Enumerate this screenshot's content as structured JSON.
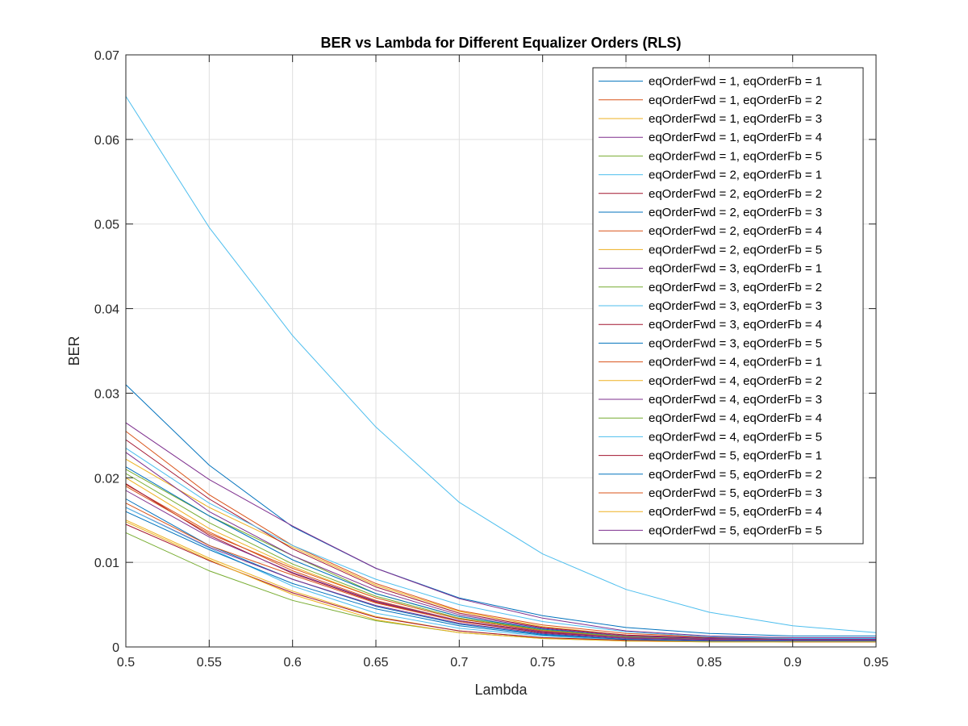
{
  "chart_data": {
    "type": "line",
    "title": "BER vs Lambda for Different Equalizer Orders (RLS)",
    "xlabel": "Lambda",
    "ylabel": "BER",
    "xlim": [
      0.5,
      0.95
    ],
    "ylim": [
      0,
      0.07
    ],
    "xticks": [
      "0.5",
      "0.55",
      "0.6",
      "0.65",
      "0.7",
      "0.75",
      "0.8",
      "0.85",
      "0.9",
      "0.95"
    ],
    "yticks": [
      "0",
      "0.01",
      "0.02",
      "0.03",
      "0.04",
      "0.05",
      "0.06",
      "0.07"
    ],
    "grid": true,
    "legend_position": "top-right",
    "x": [
      0.5,
      0.55,
      0.6,
      0.65,
      0.7,
      0.75,
      0.8,
      0.85,
      0.9,
      0.95
    ],
    "series": [
      {
        "name": "eqOrderFwd = 1, eqOrderFb = 1",
        "color": "#0072BD",
        "values": [
          0.031,
          0.0215,
          0.0142,
          0.0093,
          0.0058,
          0.0037,
          0.0023,
          0.0016,
          0.0013,
          0.0013
        ]
      },
      {
        "name": "eqOrderFwd = 1, eqOrderFb = 2",
        "color": "#D95319",
        "values": [
          0.0255,
          0.018,
          0.012,
          0.0075,
          0.0043,
          0.0026,
          0.0016,
          0.0012,
          0.0011,
          0.001
        ]
      },
      {
        "name": "eqOrderFwd = 1, eqOrderFb = 3",
        "color": "#EDB120",
        "values": [
          0.0222,
          0.0165,
          0.0118,
          0.0073,
          0.0042,
          0.0024,
          0.0014,
          0.0011,
          0.001,
          0.0009
        ]
      },
      {
        "name": "eqOrderFwd = 1, eqOrderFb = 4",
        "color": "#7E2F8E",
        "values": [
          0.0265,
          0.0198,
          0.0143,
          0.0093,
          0.0057,
          0.0034,
          0.0019,
          0.0013,
          0.0011,
          0.0011
        ]
      },
      {
        "name": "eqOrderFwd = 1, eqOrderFb = 5",
        "color": "#77AC30",
        "values": [
          0.021,
          0.0155,
          0.0108,
          0.0063,
          0.0036,
          0.002,
          0.0012,
          0.001,
          0.0009,
          0.0009
        ]
      },
      {
        "name": "eqOrderFwd = 2, eqOrderFb = 1",
        "color": "#4DBEEE",
        "values": [
          0.0651,
          0.0496,
          0.0368,
          0.026,
          0.0171,
          0.011,
          0.0068,
          0.0041,
          0.0025,
          0.0017
        ]
      },
      {
        "name": "eqOrderFwd = 2, eqOrderFb = 2",
        "color": "#A2142F",
        "values": [
          0.0245,
          0.0175,
          0.0116,
          0.0071,
          0.004,
          0.0023,
          0.0014,
          0.0011,
          0.001,
          0.001
        ]
      },
      {
        "name": "eqOrderFwd = 2, eqOrderFb = 3",
        "color": "#0072BD",
        "values": [
          0.0213,
          0.0155,
          0.0103,
          0.0063,
          0.0036,
          0.0021,
          0.0013,
          0.001,
          0.0009,
          0.0009
        ]
      },
      {
        "name": "eqOrderFwd = 2, eqOrderFb = 4",
        "color": "#D95319",
        "values": [
          0.0192,
          0.0136,
          0.009,
          0.0055,
          0.0031,
          0.0018,
          0.0011,
          0.0009,
          0.0008,
          0.0008
        ]
      },
      {
        "name": "eqOrderFwd = 2, eqOrderFb = 5",
        "color": "#EDB120",
        "values": [
          0.02,
          0.014,
          0.0095,
          0.0058,
          0.0033,
          0.0019,
          0.0012,
          0.0009,
          0.0008,
          0.0008
        ]
      },
      {
        "name": "eqOrderFwd = 3, eqOrderFb = 1",
        "color": "#7E2F8E",
        "values": [
          0.023,
          0.016,
          0.0108,
          0.0067,
          0.0038,
          0.0022,
          0.0013,
          0.001,
          0.0009,
          0.0009
        ]
      },
      {
        "name": "eqOrderFwd = 3, eqOrderFb = 2",
        "color": "#77AC30",
        "values": [
          0.0205,
          0.0147,
          0.0098,
          0.006,
          0.0034,
          0.002,
          0.0012,
          0.0009,
          0.0008,
          0.0008
        ]
      },
      {
        "name": "eqOrderFwd = 3, eqOrderFb = 3",
        "color": "#4DBEEE",
        "values": [
          0.0235,
          0.017,
          0.012,
          0.008,
          0.005,
          0.003,
          0.0018,
          0.0012,
          0.001,
          0.001
        ]
      },
      {
        "name": "eqOrderFwd = 3, eqOrderFb = 4",
        "color": "#A2142F",
        "values": [
          0.0193,
          0.0132,
          0.0087,
          0.0053,
          0.003,
          0.0017,
          0.0011,
          0.0008,
          0.0007,
          0.0007
        ]
      },
      {
        "name": "eqOrderFwd = 3, eqOrderFb = 5",
        "color": "#0072BD",
        "values": [
          0.0175,
          0.012,
          0.008,
          0.0048,
          0.0027,
          0.0015,
          0.0009,
          0.0007,
          0.0007,
          0.0007
        ]
      },
      {
        "name": "eqOrderFwd = 4, eqOrderFb = 1",
        "color": "#D95319",
        "values": [
          0.019,
          0.0134,
          0.0093,
          0.0058,
          0.0033,
          0.0019,
          0.0011,
          0.0008,
          0.0007,
          0.0007
        ]
      },
      {
        "name": "eqOrderFwd = 4, eqOrderFb = 2",
        "color": "#EDB120",
        "values": [
          0.015,
          0.0105,
          0.0066,
          0.0036,
          0.0019,
          0.0011,
          0.0008,
          0.0007,
          0.0006,
          0.0006
        ]
      },
      {
        "name": "eqOrderFwd = 4, eqOrderFb = 3",
        "color": "#7E2F8E",
        "values": [
          0.0165,
          0.0118,
          0.008,
          0.0049,
          0.0028,
          0.0016,
          0.001,
          0.0008,
          0.0007,
          0.0007
        ]
      },
      {
        "name": "eqOrderFwd = 4, eqOrderFb = 4",
        "color": "#77AC30",
        "values": [
          0.0135,
          0.009,
          0.0055,
          0.0031,
          0.0017,
          0.001,
          0.0007,
          0.0006,
          0.0006,
          0.0006
        ]
      },
      {
        "name": "eqOrderFwd = 4, eqOrderFb = 5",
        "color": "#4DBEEE",
        "values": [
          0.0165,
          0.0117,
          0.0072,
          0.004,
          0.0022,
          0.0013,
          0.0008,
          0.0007,
          0.0007,
          0.0007
        ]
      },
      {
        "name": "eqOrderFwd = 5, eqOrderFb = 1",
        "color": "#A2142F",
        "values": [
          0.0145,
          0.0102,
          0.0064,
          0.0035,
          0.0019,
          0.0011,
          0.0008,
          0.0007,
          0.0006,
          0.0006
        ]
      },
      {
        "name": "eqOrderFwd = 5, eqOrderFb = 2",
        "color": "#0072BD",
        "values": [
          0.016,
          0.0115,
          0.0075,
          0.0045,
          0.0025,
          0.0014,
          0.0009,
          0.0007,
          0.0007,
          0.0007
        ]
      },
      {
        "name": "eqOrderFwd = 5, eqOrderFb = 3",
        "color": "#D95319",
        "values": [
          0.017,
          0.012,
          0.0085,
          0.0052,
          0.003,
          0.0018,
          0.0011,
          0.0009,
          0.0008,
          0.0008
        ]
      },
      {
        "name": "eqOrderFwd = 5, eqOrderFb = 4",
        "color": "#EDB120",
        "values": [
          0.0148,
          0.0103,
          0.0062,
          0.0032,
          0.0017,
          0.001,
          0.0007,
          0.0006,
          0.0006,
          0.0006
        ]
      },
      {
        "name": "eqOrderFwd = 5, eqOrderFb = 5",
        "color": "#7E2F8E",
        "values": [
          0.0185,
          0.013,
          0.0088,
          0.0054,
          0.0031,
          0.0018,
          0.0011,
          0.0009,
          0.0008,
          0.0008
        ]
      }
    ]
  }
}
